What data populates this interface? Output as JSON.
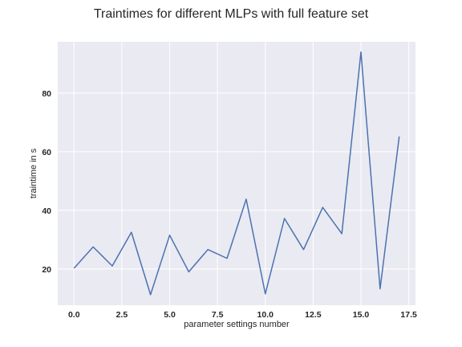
{
  "chart_data": {
    "type": "line",
    "title": "Traintimes for different MLPs with full feature set",
    "xlabel": "parameter settings number",
    "ylabel": "traintime in s",
    "xlim": [
      -0.85,
      17.85
    ],
    "ylim": [
      7.6,
      97.5
    ],
    "xticks": [
      0.0,
      2.5,
      5.0,
      7.5,
      10.0,
      12.5,
      15.0,
      17.5
    ],
    "xtick_labels": [
      "0.0",
      "2.5",
      "5.0",
      "7.5",
      "10.0",
      "12.5",
      "15.0",
      "17.5"
    ],
    "yticks": [
      20,
      40,
      60,
      80
    ],
    "ytick_labels": [
      "20",
      "40",
      "60",
      "80"
    ],
    "grid": true,
    "colors": {
      "background": "#eaeaf2",
      "grid": "#ffffff",
      "line": "#4c72b0"
    },
    "series": [
      {
        "x": [
          0,
          1,
          2,
          3,
          4,
          5,
          6,
          7,
          8,
          9,
          10,
          11,
          12,
          13,
          14,
          15,
          16,
          17
        ],
        "values": [
          20.2,
          27.5,
          21.0,
          32.5,
          11.2,
          31.5,
          19.0,
          26.6,
          23.6,
          43.8,
          11.5,
          37.2,
          26.6,
          41.0,
          32.0,
          94.0,
          13.2,
          65.2
        ]
      }
    ]
  }
}
